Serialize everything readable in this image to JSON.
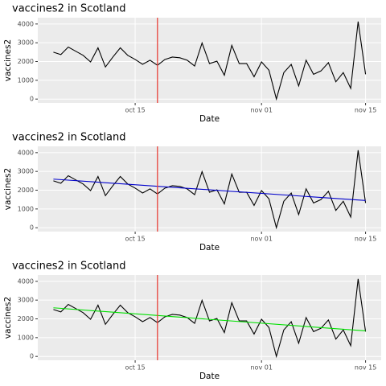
{
  "chart_data": [
    {
      "type": "line",
      "title": "vaccines2 in Scotland",
      "xlabel": "Date",
      "ylabel": "vaccines2",
      "categories": [
        "oct 04",
        "oct 05",
        "oct 06",
        "oct 07",
        "oct 08",
        "oct 09",
        "oct 10",
        "oct 11",
        "oct 12",
        "oct 13",
        "oct 14",
        "oct 15",
        "oct 16",
        "oct 17",
        "oct 18",
        "oct 19",
        "oct 20",
        "oct 21",
        "oct 22",
        "oct 23",
        "oct 24",
        "oct 25",
        "oct 26",
        "oct 27",
        "oct 28",
        "oct 29",
        "oct 30",
        "oct 31",
        "nov 01",
        "nov 02",
        "nov 03",
        "nov 04",
        "nov 05",
        "nov 06",
        "nov 07",
        "nov 08",
        "nov 09",
        "nov 10",
        "nov 11",
        "nov 12",
        "nov 13",
        "nov 14",
        "nov 15"
      ],
      "series": [
        {
          "color": "#000000",
          "values": [
            2500,
            2370,
            2770,
            2550,
            2330,
            1980,
            2730,
            1710,
            2240,
            2730,
            2330,
            2110,
            1850,
            2070,
            1800,
            2110,
            2240,
            2200,
            2070,
            1760,
            2990,
            1890,
            2020,
            1270,
            2860,
            1890,
            1890,
            1190,
            1980,
            1540,
            0,
            1410,
            1850,
            700,
            2070,
            1320,
            1500,
            1940,
            920,
            1410,
            570,
            4130,
            1320
          ]
        }
      ],
      "vline": {
        "x": "oct 18",
        "color": "#e8413a"
      },
      "xticks": [
        "oct 15",
        "nov 01",
        "nov 15"
      ],
      "ylim": [
        -206,
        4336
      ],
      "yticks": [
        0,
        1000,
        2000,
        3000,
        4000
      ]
    },
    {
      "type": "line",
      "title": "vaccines2 in Scotland",
      "xlabel": "Date",
      "ylabel": "vaccines2",
      "categories": [
        "oct 04",
        "oct 05",
        "oct 06",
        "oct 07",
        "oct 08",
        "oct 09",
        "oct 10",
        "oct 11",
        "oct 12",
        "oct 13",
        "oct 14",
        "oct 15",
        "oct 16",
        "oct 17",
        "oct 18",
        "oct 19",
        "oct 20",
        "oct 21",
        "oct 22",
        "oct 23",
        "oct 24",
        "oct 25",
        "oct 26",
        "oct 27",
        "oct 28",
        "oct 29",
        "oct 30",
        "oct 31",
        "nov 01",
        "nov 02",
        "nov 03",
        "nov 04",
        "nov 05",
        "nov 06",
        "nov 07",
        "nov 08",
        "nov 09",
        "nov 10",
        "nov 11",
        "nov 12",
        "nov 13",
        "nov 14",
        "nov 15"
      ],
      "series": [
        {
          "color": "#000000",
          "values": [
            2500,
            2370,
            2770,
            2550,
            2330,
            1980,
            2730,
            1710,
            2240,
            2730,
            2330,
            2110,
            1850,
            2070,
            1800,
            2110,
            2240,
            2200,
            2070,
            1760,
            2990,
            1890,
            2020,
            1270,
            2860,
            1890,
            1890,
            1190,
            1980,
            1540,
            0,
            1410,
            1850,
            700,
            2070,
            1320,
            1500,
            1940,
            920,
            1410,
            570,
            4130,
            1320
          ]
        }
      ],
      "trend": {
        "color": "#0000cc",
        "from": 2590,
        "to": 1450
      },
      "vline": {
        "x": "oct 18",
        "color": "#e8413a"
      },
      "xticks": [
        "oct 15",
        "nov 01",
        "nov 15"
      ],
      "ylim": [
        -206,
        4336
      ],
      "yticks": [
        0,
        1000,
        2000,
        3000,
        4000
      ]
    },
    {
      "type": "line",
      "title": "vaccines2 in Scotland",
      "xlabel": "Date",
      "ylabel": "vaccines2",
      "categories": [
        "oct 04",
        "oct 05",
        "oct 06",
        "oct 07",
        "oct 08",
        "oct 09",
        "oct 10",
        "oct 11",
        "oct 12",
        "oct 13",
        "oct 14",
        "oct 15",
        "oct 16",
        "oct 17",
        "oct 18",
        "oct 19",
        "oct 20",
        "oct 21",
        "oct 22",
        "oct 23",
        "oct 24",
        "oct 25",
        "oct 26",
        "oct 27",
        "oct 28",
        "oct 29",
        "oct 30",
        "oct 31",
        "nov 01",
        "nov 02",
        "nov 03",
        "nov 04",
        "nov 05",
        "nov 06",
        "nov 07",
        "nov 08",
        "nov 09",
        "nov 10",
        "nov 11",
        "nov 12",
        "nov 13",
        "nov 14",
        "nov 15"
      ],
      "series": [
        {
          "color": "#000000",
          "values": [
            2500,
            2370,
            2770,
            2550,
            2330,
            1980,
            2730,
            1710,
            2240,
            2730,
            2330,
            2110,
            1850,
            2070,
            1800,
            2110,
            2240,
            2200,
            2070,
            1760,
            2990,
            1890,
            2020,
            1270,
            2860,
            1890,
            1890,
            1190,
            1980,
            1540,
            0,
            1410,
            1850,
            700,
            2070,
            1320,
            1500,
            1940,
            920,
            1410,
            570,
            4130,
            1320
          ]
        }
      ],
      "trend": {
        "color": "#00e000",
        "from": 2590,
        "to": 1360
      },
      "vline": {
        "x": "oct 18",
        "color": "#e8413a"
      },
      "xticks": [
        "oct 15",
        "nov 01",
        "nov 15"
      ],
      "ylim": [
        -206,
        4336
      ],
      "yticks": [
        0,
        1000,
        2000,
        3000,
        4000
      ]
    }
  ]
}
